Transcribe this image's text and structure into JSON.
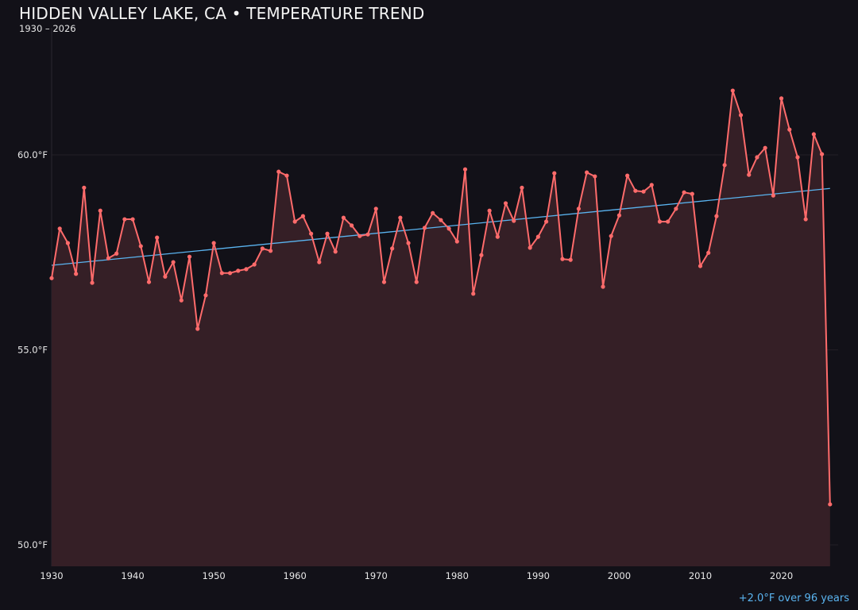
{
  "chart_data": {
    "type": "line",
    "title": "HIDDEN VALLEY LAKE, CA • TEMPERATURE TREND",
    "subtitle": "1930 – 2026",
    "annotation": "+2.0°F over 96 years",
    "xlabel": "",
    "ylabel": "",
    "xlim": [
      1930,
      2027
    ],
    "ylim": [
      49.45,
      63.26
    ],
    "x_ticks": [
      1930,
      1940,
      1950,
      1960,
      1970,
      1980,
      1990,
      2000,
      2010,
      2020
    ],
    "x_tick_labels": [
      "1930",
      "1940",
      "1950",
      "1960",
      "1970",
      "1980",
      "1990",
      "2000",
      "2010",
      "2020"
    ],
    "y_ticks": [
      50,
      55,
      60
    ],
    "y_tick_labels": [
      "50.0°F",
      "55.0°F",
      "60.0°F"
    ],
    "grid": true,
    "colors": {
      "background": "#121118",
      "line": "#ff6b6b",
      "fill": "#351f26",
      "trend": "#5ab4f0",
      "grid": "#231f26"
    },
    "series": [
      {
        "x": [
          1930,
          1931,
          1932,
          1933,
          1934,
          1935,
          1936,
          1937,
          1938,
          1939,
          1940,
          1941,
          1942,
          1943,
          1944,
          1945,
          1946,
          1947,
          1948,
          1949,
          1950,
          1951,
          1952,
          1953,
          1954,
          1955,
          1956,
          1957,
          1958,
          1959,
          1960,
          1961,
          1962,
          1963,
          1964,
          1965,
          1966,
          1967,
          1968,
          1969,
          1970,
          1971,
          1972,
          1973,
          1974,
          1975,
          1976,
          1977,
          1978,
          1979,
          1980,
          1981,
          1982,
          1983,
          1984,
          1985,
          1986,
          1987,
          1988,
          1989,
          1990,
          1991,
          1992,
          1993,
          1994,
          1995,
          1996,
          1997,
          1998,
          1999,
          2000,
          2001,
          2002,
          2003,
          2004,
          2005,
          2006,
          2007,
          2008,
          2009,
          2010,
          2011,
          2012,
          2013,
          2014,
          2015,
          2016,
          2017,
          2018,
          2019,
          2020,
          2021,
          2022,
          2023,
          2024,
          2025,
          2026
        ],
        "values": [
          56.84,
          58.11,
          57.74,
          56.95,
          59.16,
          56.72,
          58.57,
          57.35,
          57.47,
          58.35,
          58.35,
          57.66,
          56.74,
          57.88,
          56.88,
          57.25,
          56.27,
          57.39,
          55.54,
          56.4,
          57.74,
          56.97,
          56.97,
          57.03,
          57.07,
          57.19,
          57.6,
          57.54,
          59.57,
          59.47,
          58.29,
          58.43,
          57.98,
          57.25,
          57.98,
          57.52,
          58.39,
          58.19,
          57.92,
          57.96,
          58.62,
          56.74,
          57.6,
          58.39,
          57.74,
          56.74,
          58.13,
          58.51,
          58.33,
          58.11,
          57.78,
          59.63,
          56.44,
          57.43,
          58.57,
          57.9,
          58.76,
          58.31,
          59.16,
          57.62,
          57.9,
          58.29,
          59.53,
          57.33,
          57.31,
          58.62,
          59.55,
          59.45,
          56.62,
          57.92,
          58.45,
          59.47,
          59.08,
          59.06,
          59.23,
          58.29,
          58.29,
          58.62,
          59.04,
          59.0,
          57.15,
          57.49,
          58.43,
          59.74,
          61.65,
          61.02,
          59.49,
          59.94,
          60.18,
          58.96,
          61.45,
          60.65,
          59.94,
          58.35,
          60.53,
          60.02,
          51.04
        ]
      }
    ],
    "trend": {
      "x": [
        1930,
        2026
      ],
      "values": [
        57.17,
        59.14
      ]
    }
  }
}
